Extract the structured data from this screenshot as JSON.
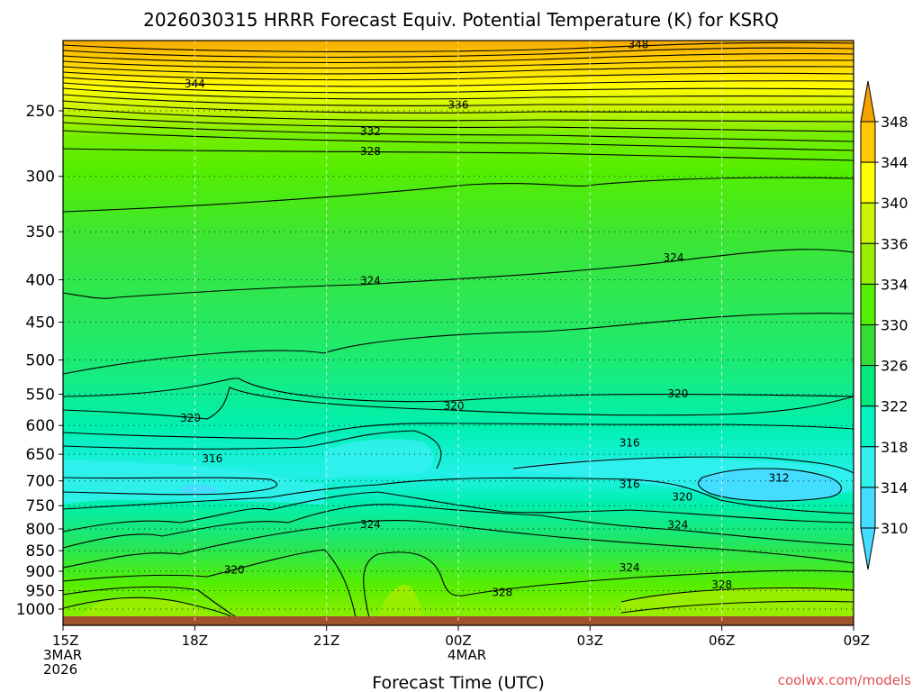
{
  "chart_data": {
    "type": "heatmap",
    "title": "2026030315 HRRR Forecast Equiv. Potential Temperature (K) for KSRQ",
    "xlabel": "Forecast Time (UTC)",
    "ylabel": "",
    "x_ticks": [
      {
        "label": "15Z",
        "sub": [
          "3MAR",
          "2026"
        ]
      },
      {
        "label": "18Z",
        "sub": []
      },
      {
        "label": "21Z",
        "sub": []
      },
      {
        "label": "00Z",
        "sub": [
          "4MAR"
        ]
      },
      {
        "label": "03Z",
        "sub": []
      },
      {
        "label": "06Z",
        "sub": []
      },
      {
        "label": "09Z",
        "sub": []
      }
    ],
    "x_range_hours": [
      0,
      18
    ],
    "y_axis": "pressure (hPa), inverted",
    "y_ticks": [
      250,
      300,
      350,
      400,
      450,
      500,
      550,
      600,
      650,
      700,
      750,
      800,
      850,
      900,
      950,
      1000
    ],
    "y_range": [
      200,
      1013
    ],
    "colorbar": {
      "labels": [
        348,
        344,
        340,
        336,
        334,
        330,
        326,
        322,
        318,
        314,
        310
      ],
      "colors": [
        "#f5a300",
        "#ffc800",
        "#ffff00",
        "#cbf500",
        "#99ee00",
        "#55ee00",
        "#33dd33",
        "#00ea7a",
        "#00f5c0",
        "#33f0f0",
        "#44dcff"
      ],
      "extend": "both"
    },
    "ground_color": "#a0522d",
    "contour_labels": [
      {
        "text": "348",
        "x": 13.1,
        "p": 208
      },
      {
        "text": "344",
        "x": 3.0,
        "p": 232
      },
      {
        "text": "336",
        "x": 9.0,
        "p": 246
      },
      {
        "text": "332",
        "x": 7.0,
        "p": 265
      },
      {
        "text": "328",
        "x": 7.0,
        "p": 280
      },
      {
        "text": "324",
        "x": 7.0,
        "p": 401
      },
      {
        "text": "324",
        "x": 13.9,
        "p": 376
      },
      {
        "text": "320",
        "x": 2.9,
        "p": 588
      },
      {
        "text": "320",
        "x": 8.9,
        "p": 568
      },
      {
        "text": "320",
        "x": 14.0,
        "p": 549
      },
      {
        "text": "316",
        "x": 3.4,
        "p": 658
      },
      {
        "text": "316",
        "x": 12.9,
        "p": 630
      },
      {
        "text": "316",
        "x": 12.9,
        "p": 707
      },
      {
        "text": "312",
        "x": 16.3,
        "p": 694
      },
      {
        "text": "320",
        "x": 14.1,
        "p": 732
      },
      {
        "text": "324",
        "x": 7.0,
        "p": 790
      },
      {
        "text": "324",
        "x": 14.0,
        "p": 791
      },
      {
        "text": "320",
        "x": 3.9,
        "p": 897
      },
      {
        "text": "324",
        "x": 12.9,
        "p": 891
      },
      {
        "text": "328",
        "x": 10.0,
        "p": 955
      },
      {
        "text": "328",
        "x": 15.0,
        "p": 935
      }
    ],
    "grid": true,
    "credit": "coolwx.com/models"
  }
}
